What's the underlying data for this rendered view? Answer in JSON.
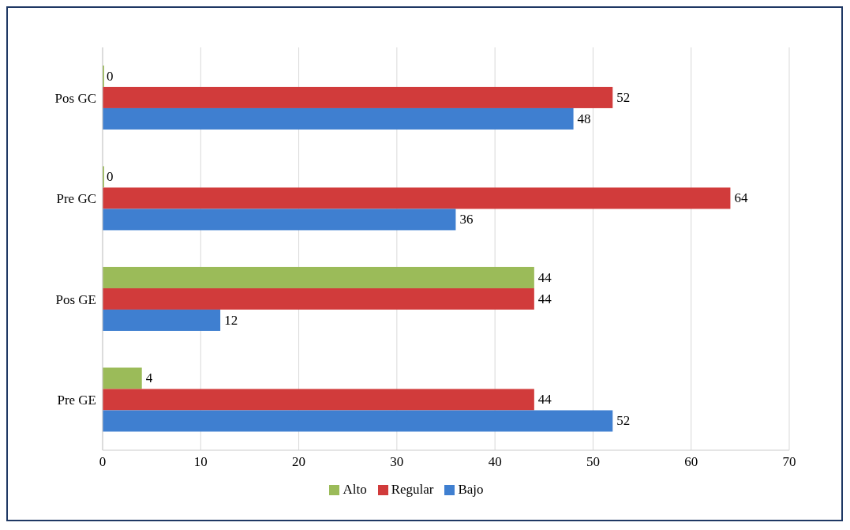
{
  "chart_data": {
    "type": "bar",
    "orientation": "horizontal",
    "categories": [
      "Pos GC",
      "Pre GC",
      "Pos GE",
      "Pre GE"
    ],
    "series": [
      {
        "name": "Alto",
        "color": "#9bbb59",
        "values": [
          0,
          0,
          44,
          4
        ]
      },
      {
        "name": "Regular",
        "color": "#d13b3b",
        "values": [
          52,
          64,
          44,
          44
        ]
      },
      {
        "name": "Bajo",
        "color": "#3f7fd0",
        "values": [
          48,
          36,
          12,
          52
        ]
      }
    ],
    "xlim": [
      0,
      70
    ],
    "xticks": [
      0,
      10,
      20,
      30,
      40,
      50,
      60,
      70
    ],
    "grid": "x",
    "legend": "bottom",
    "data_labels": true
  }
}
